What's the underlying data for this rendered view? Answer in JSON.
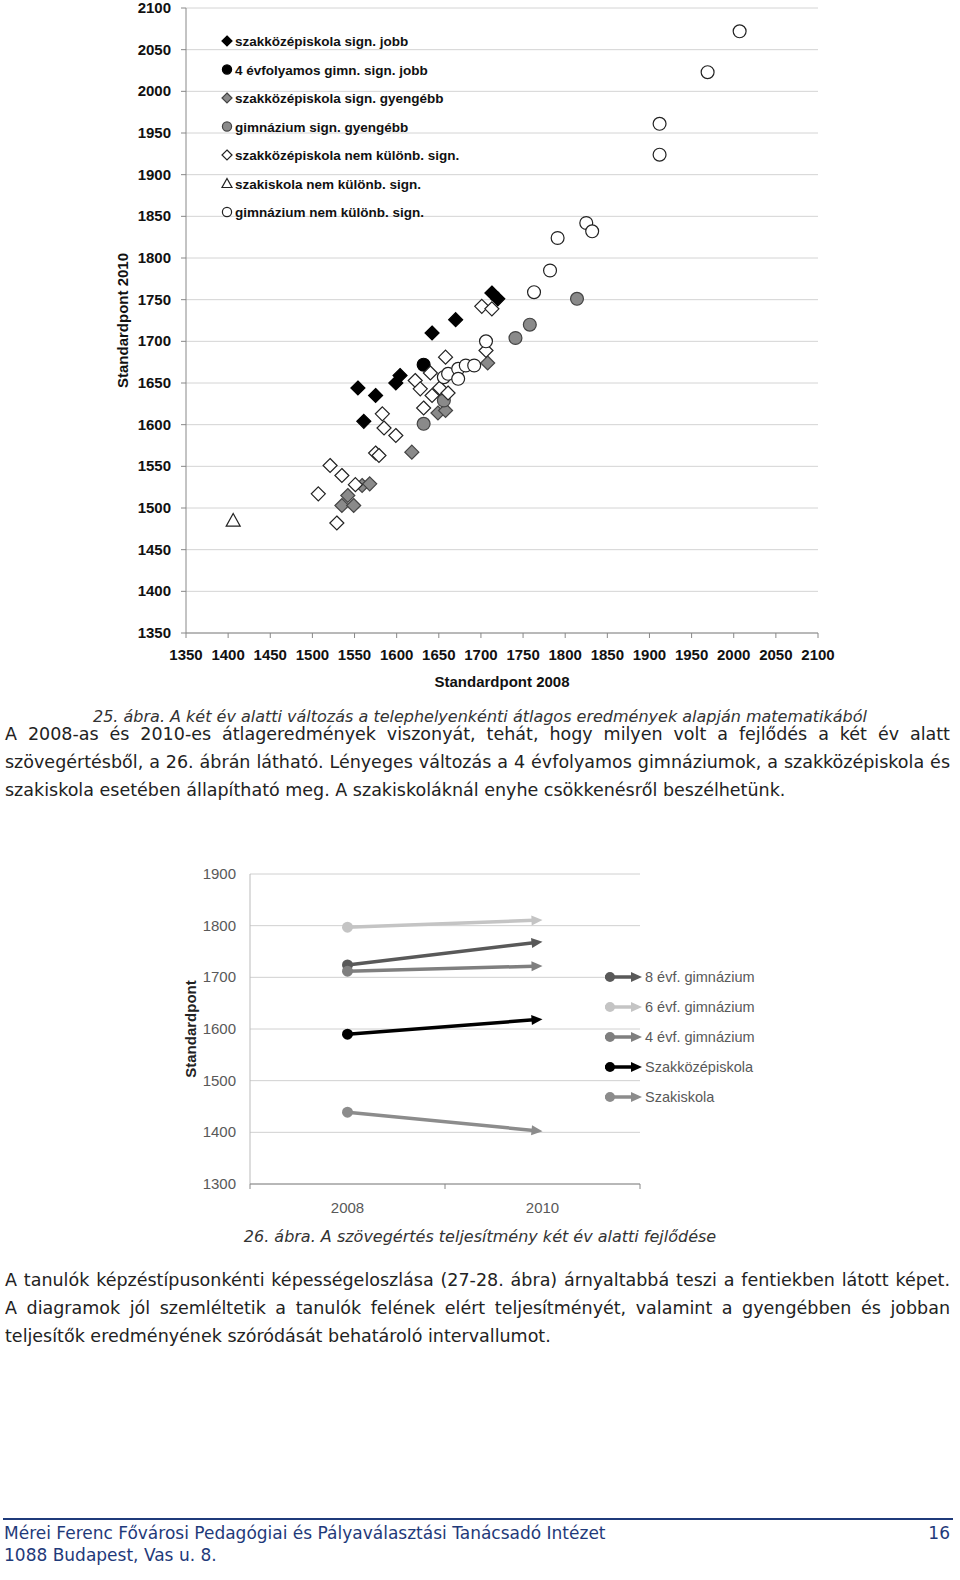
{
  "chart_data": [
    {
      "type": "scatter",
      "xlabel": "Standardpont 2008",
      "ylabel": "Standardpont 2010",
      "xlim": [
        1350,
        2100
      ],
      "ylim": [
        1350,
        2100
      ],
      "xticks": [
        1350,
        1400,
        1450,
        1500,
        1550,
        1600,
        1650,
        1700,
        1750,
        1800,
        1850,
        1900,
        1950,
        2000,
        2050,
        2100
      ],
      "yticks": [
        1350,
        1400,
        1450,
        1500,
        1550,
        1600,
        1650,
        1700,
        1750,
        1800,
        1850,
        1900,
        1950,
        2000,
        2050,
        2100
      ],
      "grid": true,
      "legend": "upper left",
      "series": [
        {
          "name": "szakközépiskola sign. jobb",
          "color": "#000000",
          "marker": "diamond",
          "x": [
            1554,
            1561,
            1575,
            1604,
            1599,
            1642,
            1670,
            1713,
            1720
          ],
          "values": [
            1644,
            1604,
            1635,
            1659,
            1650,
            1710,
            1726,
            1758,
            1751
          ]
        },
        {
          "name": "4 évfolyamos gimn. sign. jobb",
          "color": "#000000",
          "marker": "circle",
          "x": [
            1632
          ],
          "values": [
            1672
          ]
        },
        {
          "name": "szakközépiskola sign. gyengébb",
          "color": "#8a8a8a",
          "marker": "diamond",
          "x": [
            1535,
            1542,
            1549,
            1559,
            1568,
            1618,
            1649,
            1658,
            1708
          ],
          "values": [
            1503,
            1515,
            1503,
            1527,
            1529,
            1567,
            1614,
            1617,
            1674
          ]
        },
        {
          "name": "gimnázium sign. gyengébb",
          "color": "#8a8a8a",
          "marker": "circle",
          "x": [
            1632,
            1656,
            1741,
            1758,
            1814
          ],
          "values": [
            1601,
            1629,
            1704,
            1720,
            1751
          ]
        },
        {
          "name": "szakközépiskola nem különb. sign.",
          "color": "#ffffff",
          "marker": "diamond",
          "x": [
            1507,
            1521,
            1535,
            1529,
            1551,
            1583,
            1585,
            1575,
            1579,
            1599,
            1622,
            1628,
            1632,
            1640,
            1642,
            1651,
            1658,
            1661,
            1701,
            1713,
            1706
          ],
          "values": [
            1517,
            1551,
            1539,
            1482,
            1528,
            1613,
            1596,
            1566,
            1563,
            1587,
            1653,
            1643,
            1620,
            1662,
            1635,
            1644,
            1681,
            1638,
            1742,
            1739,
            1689
          ]
        },
        {
          "name": "szakiskola nem különb. sign.",
          "color": "#ffffff",
          "marker": "triangle",
          "x": [
            1406
          ],
          "values": [
            1485
          ]
        },
        {
          "name": "gimnázium nem különb. sign.",
          "color": "#ffffff",
          "marker": "circle",
          "x": [
            1656,
            1661,
            1673,
            1682,
            1706,
            1763,
            1782,
            1791,
            1825,
            1832,
            1912,
            1912,
            1969,
            2007,
            1673,
            1692
          ],
          "values": [
            1657,
            1661,
            1667,
            1671,
            1700,
            1759,
            1785,
            1824,
            1842,
            1832,
            1961,
            1924,
            2023,
            2072,
            1655,
            1671
          ]
        }
      ]
    },
    {
      "type": "line",
      "ylabel": "Standardpont",
      "categories": [
        "2008",
        "2010"
      ],
      "ylim": [
        1300,
        1900
      ],
      "yticks": [
        1300,
        1400,
        1500,
        1600,
        1700,
        1800,
        1900
      ],
      "grid": true,
      "legend": "right",
      "series": [
        {
          "name": "8 évf. gimnázium",
          "color": "#595959",
          "marker": "circle",
          "line_style": "solid",
          "values": [
            1724,
            1769
          ]
        },
        {
          "name": "6 évf. gimnázium",
          "color": "#c4c4c4",
          "marker": "circle",
          "line_style": "solid",
          "values": [
            1797,
            1811
          ]
        },
        {
          "name": "4 évf. gimnázium",
          "color": "#7f7f7f",
          "marker": "circle",
          "line_style": "solid",
          "values": [
            1712,
            1722
          ]
        },
        {
          "name": "Szakközépiskola",
          "color": "#000000",
          "marker": "circle",
          "line_style": "solid",
          "values": [
            1590,
            1619
          ]
        },
        {
          "name": "Szakiskola",
          "color": "#8c8c8c",
          "marker": "circle",
          "line_style": "solid",
          "values": [
            1439,
            1402
          ]
        }
      ]
    }
  ],
  "captions": [
    "25. ábra. A két év alatti változás a telephelyenkénti átlagos eredmények alapján matematikából",
    "26. ábra. A szövegértés teljesítmény két év alatti fejlődése"
  ],
  "paragraphs": [
    "A 2008-as és 2010-es átlageredmények viszonyát, tehát, hogy milyen volt a fejlődés a két év alatt szövegértésből, a 26. ábrán látható. Lényeges változás a 4 évfolyamos gimnáziumok, a szakközépiskola és szakiskola esetében állapítható meg. A szakiskoláknál enyhe csökkenésről beszélhetünk.",
    "A tanulók képzéstípusonkénti képességeloszlása (27-28. ábra) árnyaltabbá teszi a fentiekben látott képet. A diagramok jól szemléltetik a tanulók felének elért teljesítményét, valamint a gyengébben és jobban teljesítők eredményének szóródását behatároló intervallumot."
  ],
  "footer": {
    "institute": "Mérei Ferenc Fővárosi Pedagógiai és Pályaválasztási Tanácsadó Intézet",
    "address": "1088 Budapest, Vas u. 8.",
    "page": 16
  }
}
